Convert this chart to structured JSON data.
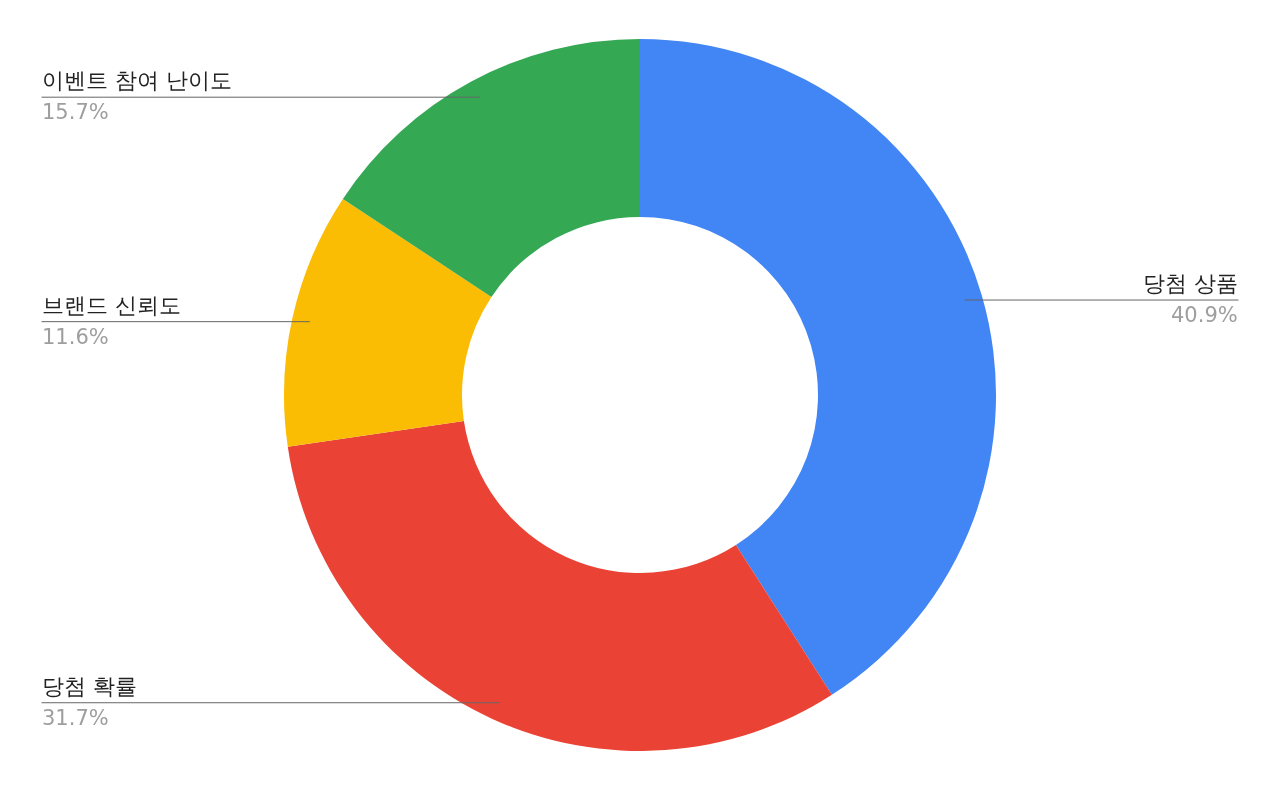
{
  "chart_data": {
    "type": "donut",
    "categories": [
      "당첨 상품",
      "당첨 확률",
      "브랜드 신뢰도",
      "이벤트 참여 난이도"
    ],
    "values": [
      40.9,
      31.7,
      11.6,
      15.7
    ],
    "colors": [
      "#4285f4",
      "#ea4335",
      "#fbbc04",
      "#34a853"
    ],
    "value_labels": [
      "40.9%",
      "31.7%",
      "11.6%",
      "15.7%"
    ],
    "legend": false
  }
}
